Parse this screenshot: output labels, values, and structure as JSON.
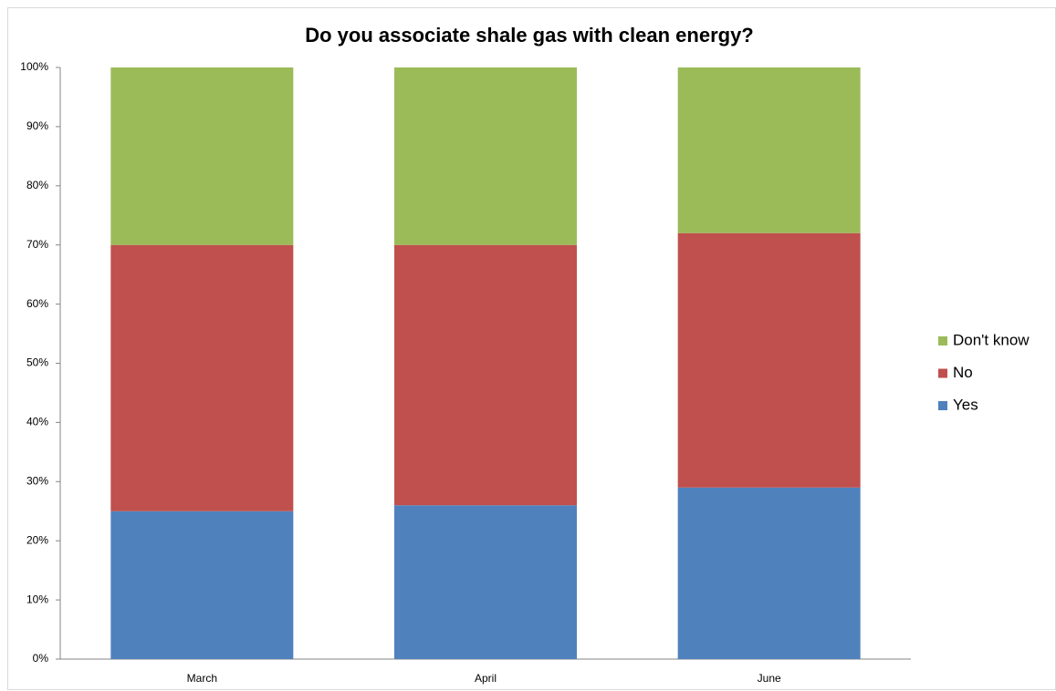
{
  "chart_data": {
    "type": "bar",
    "stacked": true,
    "title": "Do you associate shale gas with clean energy?",
    "categories": [
      "March",
      "April",
      "June"
    ],
    "series": [
      {
        "name": "Yes",
        "color": "#4f81bd",
        "values": [
          25,
          26,
          29
        ]
      },
      {
        "name": "No",
        "color": "#c0504d",
        "values": [
          45,
          44,
          43
        ]
      },
      {
        "name": "Don't know",
        "color": "#9bbb59",
        "values": [
          30,
          30,
          28
        ]
      }
    ],
    "ylim": [
      0,
      100
    ],
    "yticks": [
      {
        "value": 0,
        "label": "0%"
      },
      {
        "value": 10,
        "label": "10%"
      },
      {
        "value": 20,
        "label": "20%"
      },
      {
        "value": 30,
        "label": "30%"
      },
      {
        "value": 40,
        "label": "40%"
      },
      {
        "value": 50,
        "label": "50%"
      },
      {
        "value": 60,
        "label": "60%"
      },
      {
        "value": 70,
        "label": "70%"
      },
      {
        "value": 80,
        "label": "80%"
      },
      {
        "value": 90,
        "label": "90%"
      },
      {
        "value": 100,
        "label": "100%"
      }
    ],
    "grid": false,
    "legend": "right"
  }
}
